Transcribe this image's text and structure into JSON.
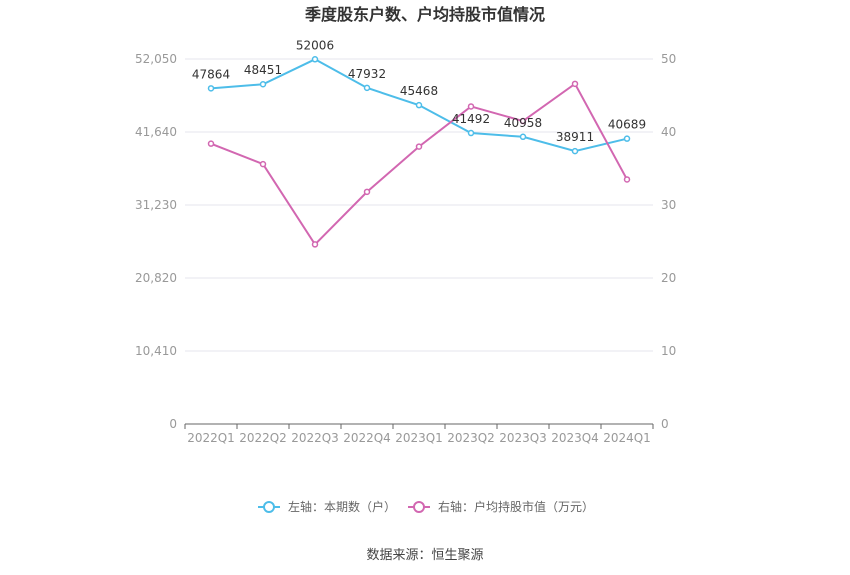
{
  "chart_data": {
    "type": "line",
    "title": "季度股东户数、户均持股市值情况",
    "categories": [
      "2022Q1",
      "2022Q2",
      "2022Q3",
      "2022Q4",
      "2023Q1",
      "2023Q2",
      "2023Q3",
      "2023Q4",
      "2024Q1"
    ],
    "left_axis": {
      "ylim": [
        0,
        52050
      ],
      "ticks": [
        "0",
        "10,410",
        "20,820",
        "31,230",
        "41,640",
        "52,050"
      ]
    },
    "right_axis": {
      "ylim": [
        0,
        50
      ],
      "ticks": [
        "0",
        "10",
        "20",
        "30",
        "40",
        "50"
      ]
    },
    "series": [
      {
        "name": "左轴：本期数（户）",
        "axis": "left",
        "color": "#4dbde9",
        "values": [
          47864,
          48451,
          52006,
          47932,
          45468,
          41492,
          40958,
          38911,
          40689
        ],
        "labels": [
          "47864",
          "48451",
          "52006",
          "47932",
          "45468",
          "41492",
          "40958",
          "38911",
          "40689"
        ]
      },
      {
        "name": "右轴：户均持股市值（万元）",
        "axis": "right",
        "color": "#d267b1",
        "values": [
          38.4,
          35.6,
          24.6,
          31.8,
          38.0,
          43.5,
          41.5,
          46.6,
          33.5
        ]
      }
    ],
    "grid": true,
    "legend_position": "bottom"
  },
  "source_text": "数据来源：恒生聚源"
}
